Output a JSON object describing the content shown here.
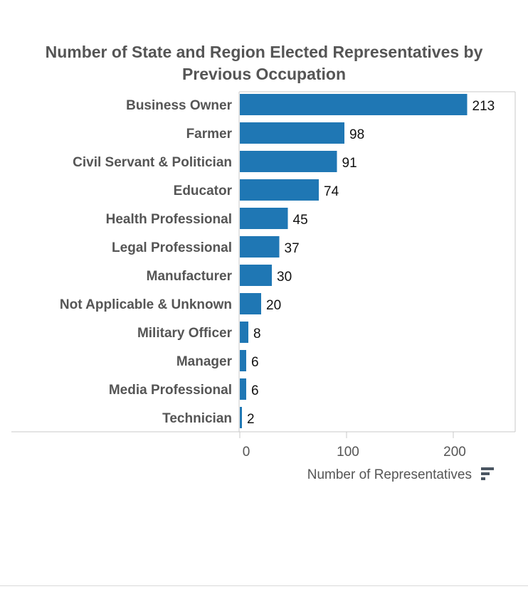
{
  "chart_data": {
    "type": "bar",
    "orientation": "horizontal",
    "title_lines": [
      "Number of State and Region Elected Representatives by",
      "Previous Occupation"
    ],
    "categories": [
      "Business Owner",
      "Farmer",
      "Civil Servant & Politician",
      "Educator",
      "Health Professional",
      "Legal Professional",
      "Manufacturer",
      "Not Applicable & Unknown",
      "Military Officer",
      "Manager",
      "Media Professional",
      "Technician"
    ],
    "values": [
      213,
      98,
      91,
      74,
      45,
      37,
      30,
      20,
      8,
      6,
      6,
      2
    ],
    "xlabel": "Number of Representatives",
    "xlim": [
      0,
      260
    ],
    "xticks": [
      0,
      100,
      200
    ],
    "grid": false,
    "bar_color": "#1f77b4",
    "sort_icon": "sort-descending-icon"
  }
}
